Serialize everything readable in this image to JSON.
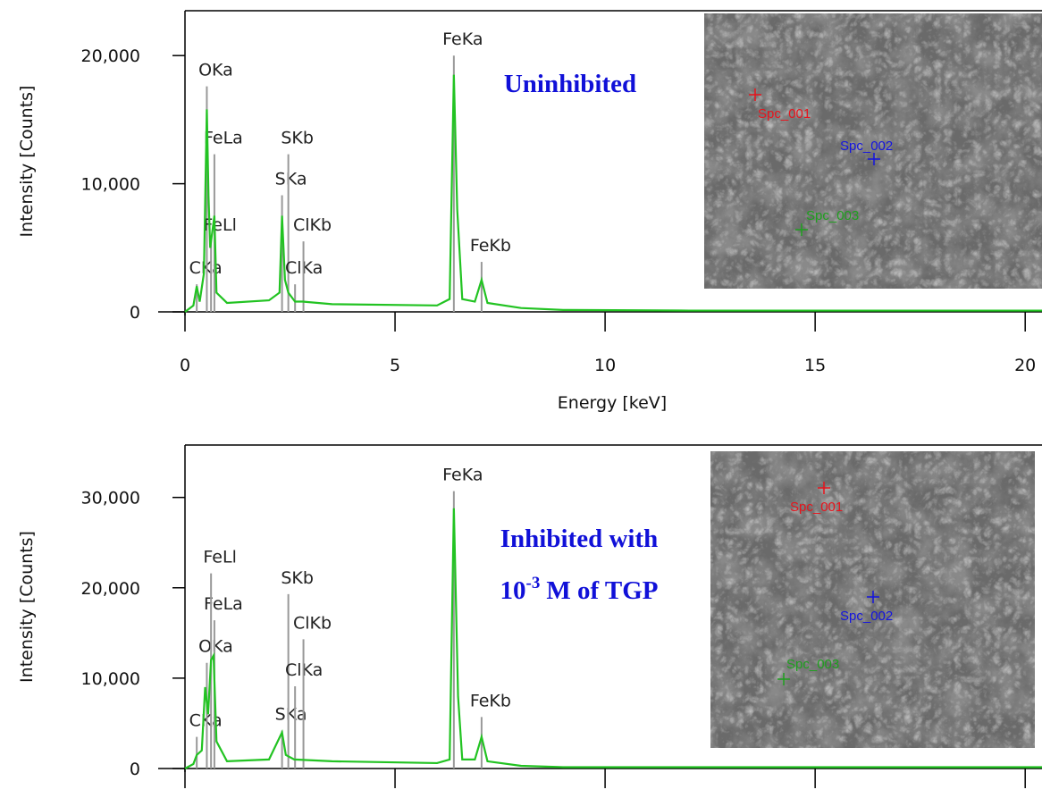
{
  "chart_data": [
    {
      "type": "line",
      "xlabel": "Energy [keV]",
      "ylabel": "Intensity [Counts]",
      "xlim": [
        0,
        20.4
      ],
      "ylim": [
        0,
        23500
      ],
      "xticks": [
        0,
        5,
        10,
        15,
        20
      ],
      "xtick_labels": true,
      "yticks": [
        0,
        {
          "value": 10000,
          "label": "10,000"
        },
        {
          "value": 20000,
          "label": "20,000"
        }
      ],
      "color": "#22c322",
      "x": [
        0,
        0.2,
        0.28,
        0.35,
        0.45,
        0.52,
        0.56,
        0.6,
        0.7,
        0.75,
        1.0,
        2.0,
        2.25,
        2.31,
        2.38,
        2.46,
        2.62,
        2.8,
        3.5,
        6.0,
        6.3,
        6.4,
        6.48,
        6.6,
        6.9,
        7.06,
        7.2,
        8,
        9,
        12,
        20.4
      ],
      "values": [
        0,
        500,
        2000,
        800,
        3000,
        15800,
        9000,
        5000,
        7500,
        1500,
        700,
        900,
        1500,
        7500,
        2500,
        1500,
        800,
        800,
        600,
        500,
        1000,
        18500,
        8000,
        1000,
        800,
        2500,
        700,
        300,
        150,
        100,
        100
      ],
      "peaks": [
        {
          "label": "CKa",
          "energy": 0.28,
          "height": 2150
        },
        {
          "label": "OKa",
          "energy": 0.52,
          "height": 17600
        },
        {
          "label": "FeLl",
          "energy": 0.62,
          "height": 5500
        },
        {
          "label": "FeLa",
          "energy": 0.7,
          "height": 12300
        },
        {
          "label": "SKa",
          "energy": 2.31,
          "height": 9100
        },
        {
          "label": "SKb",
          "energy": 2.46,
          "height": 12300
        },
        {
          "label": "ClKa",
          "energy": 2.62,
          "height": 2150
        },
        {
          "label": "ClKb",
          "energy": 2.82,
          "height": 5500
        },
        {
          "label": "FeKa",
          "energy": 6.4,
          "height": 20000
        },
        {
          "label": "FeKb",
          "energy": 7.06,
          "height": 3900
        }
      ],
      "annotation": {
        "lines": [
          "Uninhibited"
        ]
      },
      "image_points": [
        {
          "label": "Spc_001",
          "color": "#e8141c"
        },
        {
          "label": "Spc_002",
          "color": "#1414e0"
        },
        {
          "label": "Spc_003",
          "color": "#1ea01e"
        }
      ]
    },
    {
      "type": "line",
      "ylabel": "Intensity [Counts]",
      "xlim": [
        0,
        20.4
      ],
      "ylim": [
        0,
        35800
      ],
      "xticks": [
        0,
        5,
        10,
        15,
        20
      ],
      "xtick_labels": false,
      "yticks": [
        0,
        {
          "value": 10000,
          "label": "10,000"
        },
        {
          "value": 20000,
          "label": "20,000"
        },
        {
          "value": 30000,
          "label": "30,000"
        }
      ],
      "color": "#22c322",
      "x": [
        0,
        0.2,
        0.28,
        0.4,
        0.48,
        0.55,
        0.62,
        0.68,
        0.75,
        1.0,
        2.0,
        2.31,
        2.4,
        2.6,
        3.5,
        6.0,
        6.3,
        6.4,
        6.5,
        6.6,
        6.9,
        7.06,
        7.2,
        8,
        9,
        20.4
      ],
      "values": [
        0,
        500,
        1500,
        2000,
        9000,
        6000,
        12000,
        12500,
        3000,
        800,
        1000,
        4000,
        1500,
        1000,
        800,
        600,
        1000,
        28800,
        8000,
        1000,
        1000,
        3500,
        800,
        300,
        150,
        150
      ],
      "peaks": [
        {
          "label": "CKa",
          "energy": 0.28,
          "height": 3500
        },
        {
          "label": "OKa",
          "energy": 0.52,
          "height": 11700
        },
        {
          "label": "FeLa",
          "energy": 0.7,
          "height": 16400
        },
        {
          "label": "FeLl",
          "energy": 0.62,
          "height": 21600
        },
        {
          "label": "SKa",
          "energy": 2.31,
          "height": 4200
        },
        {
          "label": "SKb",
          "energy": 2.46,
          "height": 19300
        },
        {
          "label": "ClKa",
          "energy": 2.62,
          "height": 9100
        },
        {
          "label": "ClKb",
          "energy": 2.82,
          "height": 14300
        },
        {
          "label": "FeKa",
          "energy": 6.4,
          "height": 30700
        },
        {
          "label": "FeKb",
          "energy": 7.06,
          "height": 5700
        }
      ],
      "annotation": {
        "lines": [
          "Inhibited with"
        ],
        "formula": {
          "base": "10",
          "sup": "-3",
          "rest": "M of TGP"
        }
      },
      "image_points": [
        {
          "label": "Spc_001",
          "color": "#e8141c"
        },
        {
          "label": "Spc_002",
          "color": "#1414e0"
        },
        {
          "label": "Spc_003",
          "color": "#1ea01e"
        }
      ]
    }
  ]
}
